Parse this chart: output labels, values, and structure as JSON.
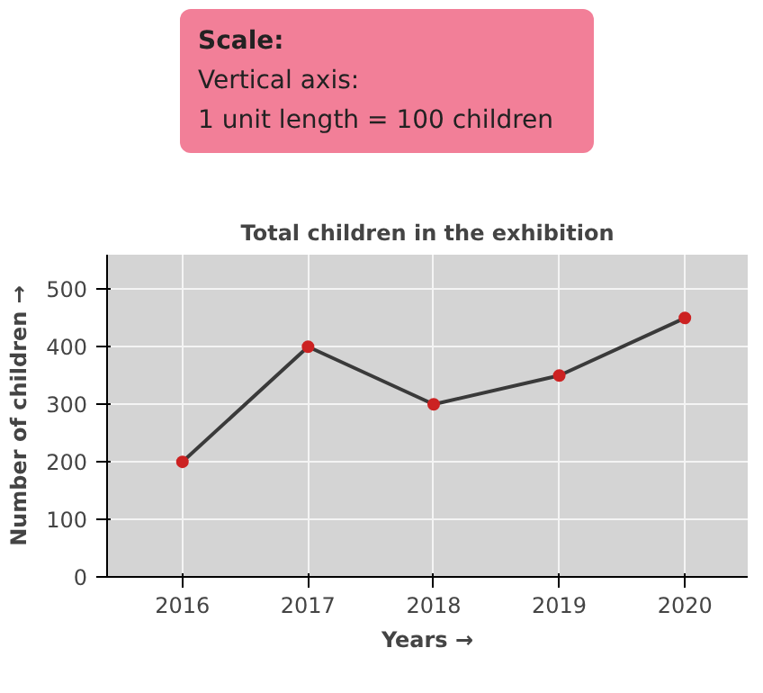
{
  "chart_data": {
    "type": "line",
    "title": "Total children in the exhibition",
    "xlabel": "Years →",
    "ylabel": "Number of children →",
    "annotations": [
      "Scale:",
      "Vertical axis:",
      "1 unit length = 100 children"
    ],
    "categories": [
      "2016",
      "2017",
      "2018",
      "2019",
      "2020"
    ],
    "series": [
      {
        "color": "#3a3a3a",
        "colors": [
          "#cc2222",
          "#cc2222",
          "#cc2222",
          "#cc2222",
          "#cc2222"
        ],
        "values": [
          200,
          400,
          300,
          350,
          450
        ]
      }
    ],
    "ylim": [
      0,
      560
    ],
    "yticks": [
      0,
      100,
      200,
      300,
      400,
      500
    ],
    "grid": true,
    "marker": "circle",
    "line_style": "solid"
  }
}
